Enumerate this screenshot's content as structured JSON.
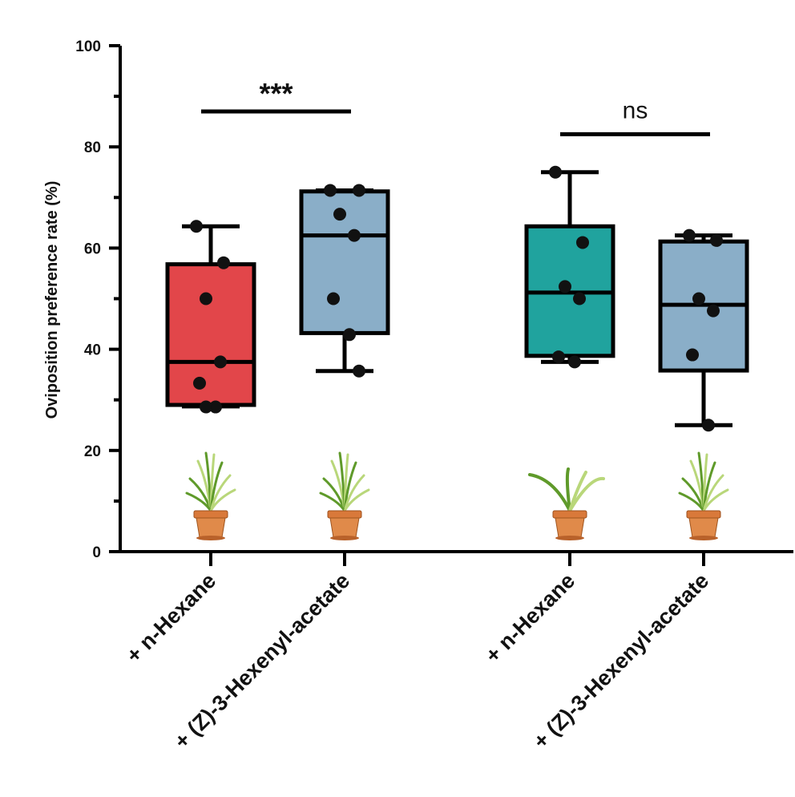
{
  "chart_data": {
    "type": "box",
    "title": "",
    "xlabel": "",
    "ylabel": "Oviposition preference rate (%)",
    "ylim": [
      0,
      100
    ],
    "yticks": [
      0,
      20,
      40,
      60,
      80,
      100
    ],
    "groups": [
      {
        "name": "+ n-Hexane",
        "color": "#e2464a",
        "box": {
          "min": 28.7,
          "q1": 29.0,
          "median": 37.5,
          "q3": 56.8,
          "max": 64.3
        },
        "points": [
          64.3,
          57.1,
          50.0,
          37.5,
          33.3,
          28.6,
          28.6
        ]
      },
      {
        "name": "+ (Z)-3-Hexenyl-acetate",
        "color": "#8aaec8",
        "box": {
          "min": 35.7,
          "q1": 43.2,
          "median": 62.5,
          "q3": 71.2,
          "max": 71.4
        },
        "points": [
          71.4,
          71.4,
          66.7,
          62.5,
          50.0,
          42.9,
          35.7
        ]
      },
      {
        "name": "+ n-Hexane",
        "color": "#20a39e",
        "box": {
          "min": 37.5,
          "q1": 38.7,
          "median": 51.2,
          "q3": 64.3,
          "max": 75.0
        },
        "points": [
          75.0,
          61.1,
          52.4,
          50.0,
          38.5,
          37.5
        ]
      },
      {
        "name": "+ (Z)-3-Hexenyl-acetate",
        "color": "#8aaec8",
        "box": {
          "min": 25.0,
          "q1": 35.8,
          "median": 48.8,
          "q3": 61.3,
          "max": 62.5
        },
        "points": [
          62.5,
          61.5,
          50.0,
          47.6,
          38.9,
          25.0
        ]
      }
    ],
    "significance": [
      {
        "between": [
          0,
          1
        ],
        "label": "***",
        "y": 87
      },
      {
        "between": [
          2,
          3
        ],
        "label": "ns",
        "y": 82.5
      }
    ],
    "plant_icons": [
      "rice",
      "rice",
      "maize",
      "rice"
    ]
  }
}
